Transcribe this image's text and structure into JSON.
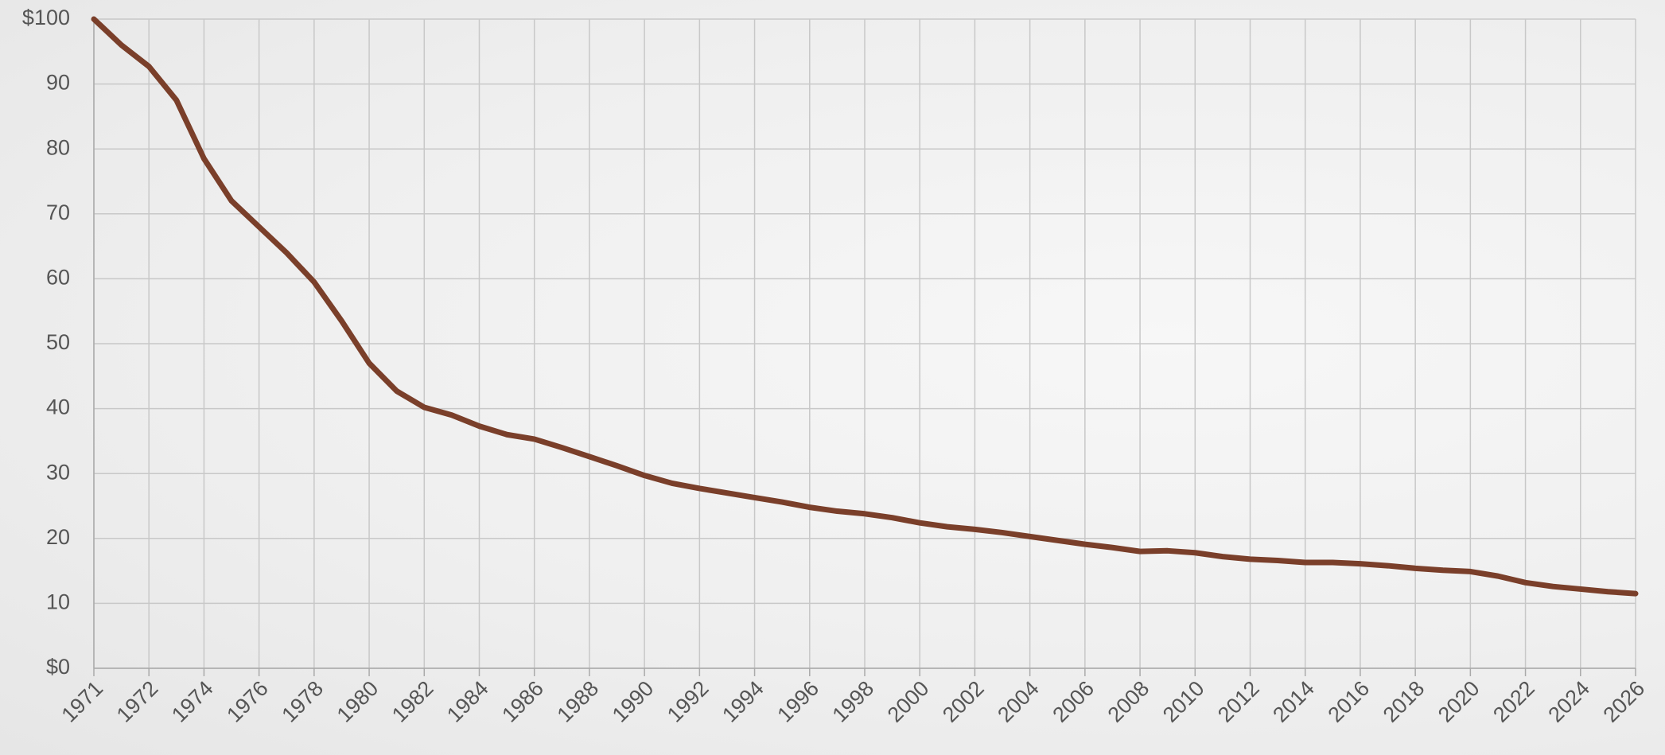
{
  "chart_data": {
    "type": "line",
    "categories": [
      "1971",
      null,
      "1972",
      null,
      "1974",
      null,
      "1976",
      null,
      "1978",
      null,
      "1980",
      null,
      "1982",
      null,
      "1984",
      null,
      "1986",
      null,
      "1988",
      null,
      "1990",
      null,
      "1992",
      null,
      "1994",
      null,
      "1996",
      null,
      "1998",
      null,
      "2000",
      null,
      "2002",
      null,
      "2004",
      null,
      "2006",
      null,
      "2008",
      null,
      "2010",
      null,
      "2012",
      null,
      "2014",
      null,
      "2016",
      null,
      "2018",
      null,
      "2020",
      null,
      "2022",
      null,
      "2024",
      null,
      "2026"
    ],
    "series": [
      {
        "color": "#7a3f2a",
        "values": [
          100,
          96,
          92.7,
          87.5,
          78.5,
          72,
          68,
          64,
          59.5,
          53.5,
          47,
          42.7,
          40.2,
          39,
          37.3,
          36,
          35.3,
          34,
          32.6,
          31.2,
          29.7,
          28.5,
          27.7,
          27,
          26.3,
          25.6,
          24.8,
          24.2,
          23.8,
          23.2,
          22.4,
          21.8,
          21.4,
          20.9,
          20.3,
          19.7,
          19.1,
          18.6,
          18,
          18.1,
          17.8,
          17.2,
          16.8,
          16.6,
          16.3,
          16.3,
          16.1,
          15.8,
          15.4,
          15.1,
          14.9,
          14.2,
          13.2,
          12.6,
          12.2,
          11.8,
          11.5
        ]
      }
    ],
    "ylim": [
      0,
      100
    ],
    "yticks": [
      {
        "value": 0,
        "label": "$0"
      },
      10,
      20,
      30,
      40,
      50,
      60,
      70,
      80,
      90,
      {
        "value": 100,
        "label": "$100"
      }
    ],
    "grid": true
  }
}
